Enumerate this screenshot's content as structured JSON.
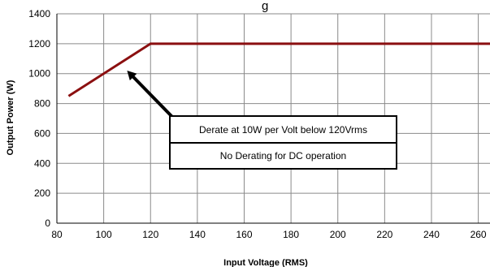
{
  "chart_data": {
    "type": "line",
    "title": "g",
    "xlabel": "Input Voltage (RMS)",
    "ylabel": "Output Power (W)",
    "xlim": [
      80,
      265
    ],
    "ylim": [
      0,
      1400
    ],
    "x_ticks": [
      80,
      100,
      120,
      140,
      160,
      180,
      200,
      220,
      240,
      260
    ],
    "y_ticks": [
      0,
      200,
      400,
      600,
      800,
      1000,
      1200,
      1400
    ],
    "grid": true,
    "series": [
      {
        "color": "#8b0f10",
        "points": [
          [
            85,
            850
          ],
          [
            120,
            1200
          ],
          [
            265,
            1200
          ]
        ]
      }
    ],
    "annotations": [
      {
        "text": "Derate at 10W per Volt below 120Vrms",
        "arrow_to": [
          110,
          1020
        ]
      },
      {
        "text": "No Derating for DC operation"
      }
    ]
  }
}
